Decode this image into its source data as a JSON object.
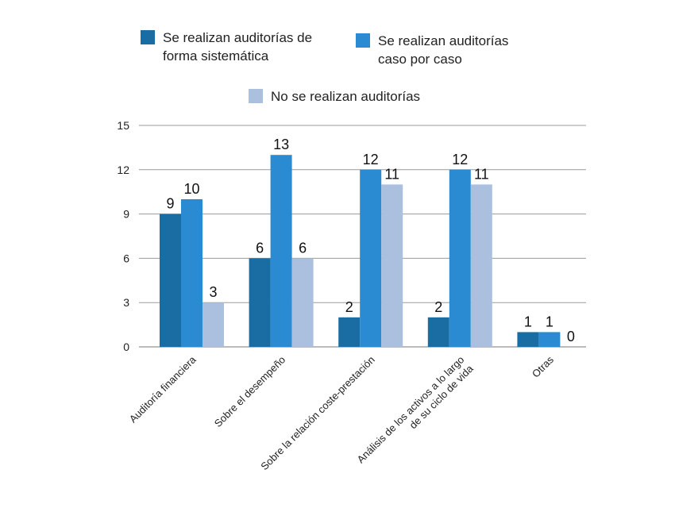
{
  "chart_data": {
    "type": "bar",
    "title": "",
    "xlabel": "",
    "ylabel": "",
    "ylim": [
      0,
      15
    ],
    "yticks": [
      0,
      3,
      6,
      9,
      12,
      15
    ],
    "grid": true,
    "legend_position": "top",
    "categories": [
      "Auditoría financiera",
      "Sobre el desempeño",
      "Sobre la relación coste-prestación",
      "Análisis de los activos a lo largo\nde su ciclo de vida",
      "Otras"
    ],
    "series": [
      {
        "name": "Se realizan auditorías de\nforma sistemática",
        "color": "#1a6da3",
        "values": [
          9,
          6,
          2,
          2,
          1
        ]
      },
      {
        "name": "Se realizan auditorías\ncaso por caso",
        "color": "#2a8bd2",
        "values": [
          10,
          13,
          12,
          12,
          1
        ]
      },
      {
        "name": "No se realizan auditorías",
        "color": "#aac0de",
        "values": [
          3,
          6,
          11,
          11,
          0
        ]
      }
    ]
  }
}
